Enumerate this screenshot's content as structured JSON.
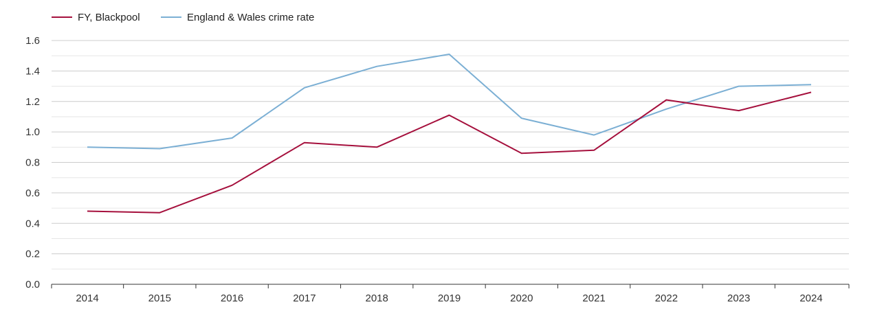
{
  "chart_data": {
    "type": "line",
    "x": [
      "2014",
      "2015",
      "2016",
      "2017",
      "2018",
      "2019",
      "2020",
      "2021",
      "2022",
      "2023",
      "2024"
    ],
    "series": [
      {
        "name": "FY, Blackpool",
        "color": "#a50f3c",
        "values": [
          0.48,
          0.47,
          0.65,
          0.93,
          0.9,
          1.11,
          0.86,
          0.88,
          1.21,
          1.14,
          1.26
        ]
      },
      {
        "name": "England & Wales crime rate",
        "color": "#7bafd4",
        "values": [
          0.9,
          0.89,
          0.96,
          1.29,
          1.43,
          1.51,
          1.09,
          0.98,
          1.15,
          1.3,
          1.31
        ]
      }
    ],
    "ylim": [
      0,
      1.6
    ],
    "yticks": [
      "0.0",
      "0.2",
      "0.4",
      "0.6",
      "0.8",
      "1.0",
      "1.2",
      "1.4",
      "1.6"
    ],
    "grid": true,
    "legend_position": "top-left"
  }
}
